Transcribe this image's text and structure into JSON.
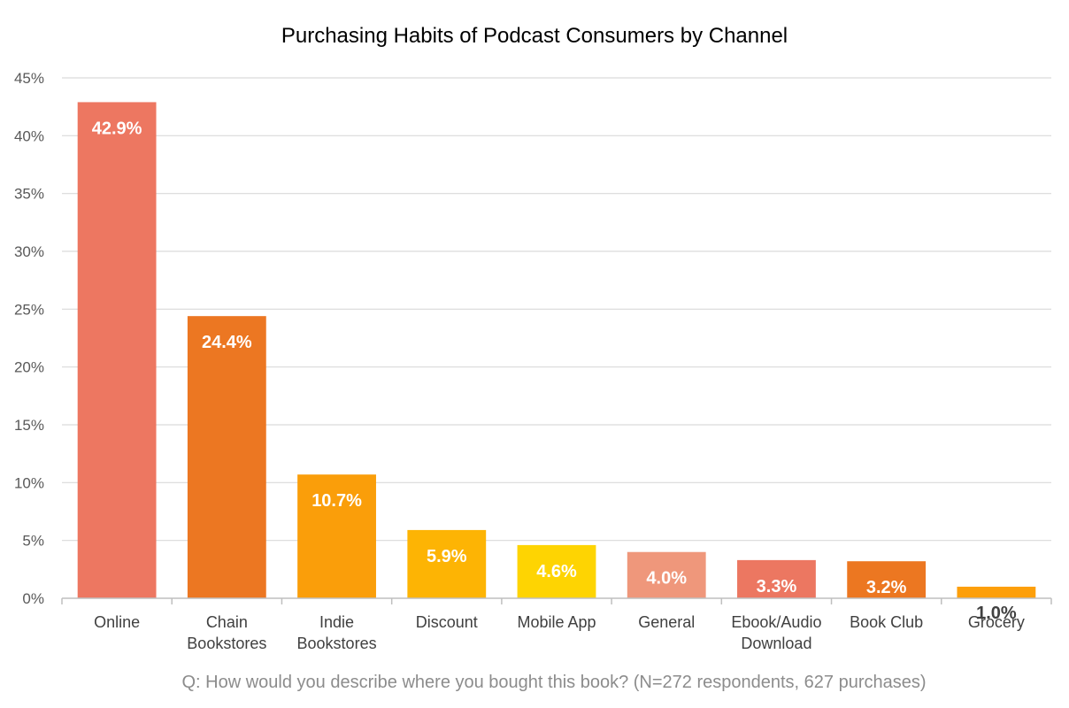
{
  "chart_data": {
    "type": "bar",
    "title": "Purchasing Habits of Podcast Consumers by Channel",
    "xlabel": "",
    "ylabel": "",
    "note": "Q: How would you describe where you bought this book? (N=272 respondents, 627 purchases)",
    "ylim": [
      0,
      45
    ],
    "yticks": [
      0,
      5,
      10,
      15,
      20,
      25,
      30,
      35,
      40,
      45
    ],
    "ytick_labels": [
      "0%",
      "5%",
      "10%",
      "15%",
      "20%",
      "25%",
      "30%",
      "35%",
      "40%",
      "45%"
    ],
    "grid": true,
    "legend": "none",
    "categories": [
      [
        "Online"
      ],
      [
        "Chain",
        "Bookstores"
      ],
      [
        "Indie",
        "Bookstores"
      ],
      [
        "Discount"
      ],
      [
        "Mobile App"
      ],
      [
        "General"
      ],
      [
        "Ebook/Audio",
        "Download"
      ],
      [
        "Book Club"
      ],
      [
        "Grocery"
      ]
    ],
    "values": [
      42.9,
      24.4,
      10.7,
      5.9,
      4.6,
      4.0,
      3.3,
      3.2,
      1.0
    ],
    "data_labels": [
      "42.9%",
      "24.4%",
      "10.7%",
      "5.9%",
      "4.6%",
      "4.0%",
      "3.3%",
      "3.2%",
      "1.0%"
    ],
    "colors": [
      "#ED7761",
      "#EC7722",
      "#FA9E0A",
      "#FDB404",
      "#FED402",
      "#EF977B",
      "#EC7761",
      "#EC7721",
      "#FD9F0A"
    ],
    "label_colors": [
      "#ffffff",
      "#ffffff",
      "#ffffff",
      "#ffffff",
      "#ffffff",
      "#ffffff",
      "#ffffff",
      "#ffffff",
      "#404040"
    ]
  }
}
